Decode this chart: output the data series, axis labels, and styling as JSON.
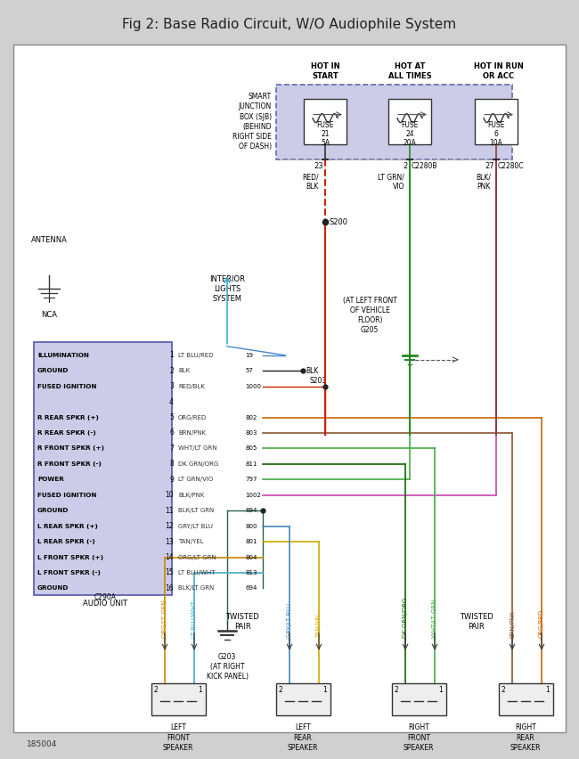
{
  "title": "Fig 2: Base Radio Circuit, W/O Audiophile System",
  "title_fontsize": 11,
  "bg_color": "#d0d0d0",
  "diagram_bg": "#ffffff",
  "figure_number": "185004",
  "fuse_box_color": "#cccce8",
  "audio_unit_color": "#cccce8",
  "audio_rows": [
    {
      "pin": "1",
      "wire": "LT BLU/RED",
      "num": "19",
      "label": "ILLUMINATION",
      "bold": true
    },
    {
      "pin": "2",
      "wire": "BLK",
      "num": "57",
      "label": "GROUND",
      "bold": true
    },
    {
      "pin": "3",
      "wire": "RED/BLK",
      "num": "1000",
      "label": "FUSED IGNITION",
      "bold": true
    },
    {
      "pin": "4",
      "wire": "",
      "num": "",
      "label": "",
      "bold": false
    },
    {
      "pin": "5",
      "wire": "ORG/RED",
      "num": "802",
      "label": "R REAR SPKR (+)",
      "bold": true
    },
    {
      "pin": "6",
      "wire": "BRN/PNK",
      "num": "803",
      "label": "R REAR SPKR (-)",
      "bold": true
    },
    {
      "pin": "7",
      "wire": "WHT/LT GRN",
      "num": "805",
      "label": "R FRONT SPKR (+)",
      "bold": true
    },
    {
      "pin": "8",
      "wire": "DK GRN/ORG",
      "num": "811",
      "label": "R FRONT SPKR (-)",
      "bold": true
    },
    {
      "pin": "9",
      "wire": "LT GRN/VIO",
      "num": "797",
      "label": "POWER",
      "bold": true
    },
    {
      "pin": "10",
      "wire": "BLK/PNK",
      "num": "1002",
      "label": "FUSED IGNITION",
      "bold": true
    },
    {
      "pin": "11",
      "wire": "BLK/LT GRN",
      "num": "694",
      "label": "GROUND",
      "bold": true
    },
    {
      "pin": "12",
      "wire": "GRY/LT BLU",
      "num": "800",
      "label": "L REAR SPKR (+)",
      "bold": true
    },
    {
      "pin": "13",
      "wire": "TAN/YEL",
      "num": "801",
      "label": "L REAR SPKR (-)",
      "bold": true
    },
    {
      "pin": "14",
      "wire": "ORG/LT GRN",
      "num": "804",
      "label": "L FRONT SPKR (+)",
      "bold": true
    },
    {
      "pin": "15",
      "wire": "LT BLU/WHT",
      "num": "813",
      "label": "L FRONT SPKR (-)",
      "bold": true
    },
    {
      "pin": "16",
      "wire": "BLK/LT GRN",
      "num": "694",
      "label": "GROUND",
      "bold": true
    }
  ]
}
